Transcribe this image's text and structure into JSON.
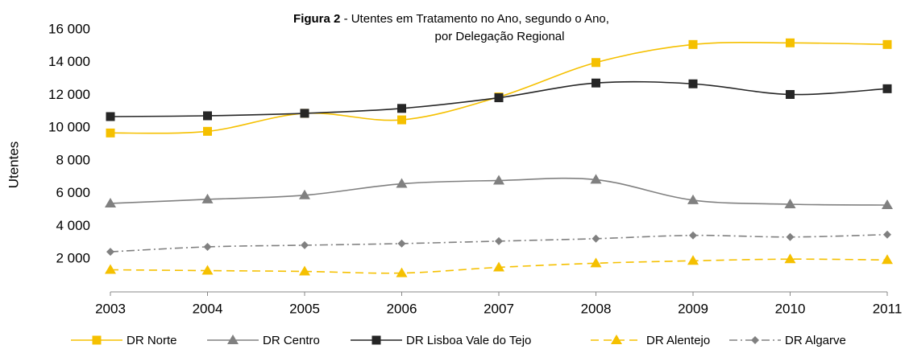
{
  "chart_data": {
    "type": "line",
    "title_prefix": "Figura 2",
    "title_lines": [
      "- Utentes  em Tratamento no Ano, segundo o Ano,",
      "por Delegação Regional"
    ],
    "y_label": "Utentes",
    "categories": [
      "2003",
      "2004",
      "2005",
      "2006",
      "2007",
      "2008",
      "2009",
      "2010",
      "2011"
    ],
    "ylim": [
      0,
      16000
    ],
    "yticks": [
      {
        "value": 2000,
        "label": "2 000"
      },
      {
        "value": 4000,
        "label": "4 000"
      },
      {
        "value": 6000,
        "label": "6 000"
      },
      {
        "value": 8000,
        "label": "8 000"
      },
      {
        "value": 10000,
        "label": "10 000"
      },
      {
        "value": 12000,
        "label": "12 000"
      },
      {
        "value": 14000,
        "label": "14 000"
      },
      {
        "value": 16000,
        "label": "16 000"
      }
    ],
    "grid": false,
    "legend": "bottom",
    "series": [
      {
        "name": "DR Norte",
        "color": "#f5c000",
        "marker": "square",
        "dash": "solid",
        "values": [
          9700,
          9800,
          10900,
          10500,
          11900,
          14000,
          15100,
          15200,
          15100
        ]
      },
      {
        "name": "DR Centro",
        "color": "#808080",
        "marker": "triangle",
        "dash": "solid",
        "values": [
          5400,
          5650,
          5900,
          6600,
          6800,
          6850,
          5600,
          5350,
          5300
        ]
      },
      {
        "name": "DR Lisboa Vale do Tejo",
        "color": "#262626",
        "marker": "square",
        "dash": "solid",
        "values": [
          10700,
          10750,
          10900,
          11200,
          11850,
          12750,
          12700,
          12050,
          12400
        ]
      },
      {
        "name": "DR Alentejo",
        "color": "#f5c000",
        "marker": "triangle",
        "dash": "dashed",
        "values": [
          1350,
          1300,
          1250,
          1150,
          1500,
          1750,
          1900,
          2000,
          1950
        ]
      },
      {
        "name": "DR Algarve",
        "color": "#808080",
        "marker": "diamond",
        "dash": "dashdot",
        "values": [
          2450,
          2750,
          2850,
          2950,
          3100,
          3250,
          3450,
          3350,
          3500
        ]
      }
    ]
  }
}
